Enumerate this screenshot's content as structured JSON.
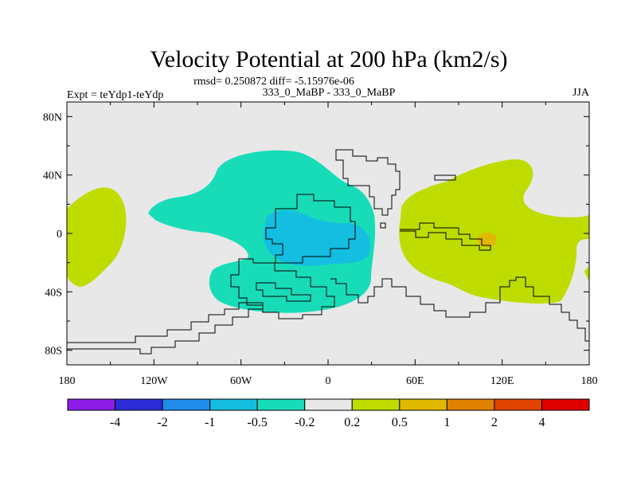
{
  "chart_data": {
    "type": "contour-map",
    "title": "Velocity Potential at 200 hPa (km2/s)",
    "stats_line": "rmsd= 0.250872 diff= -5.15976e-06",
    "left_label": "Expt = teYdp1-teYdp",
    "center_label": "333_0_MaBP - 333_0_MaBP",
    "right_label": "JJA",
    "x_ticks": [
      "180",
      "120W",
      "60W",
      "0",
      "60E",
      "120E",
      "180"
    ],
    "x_tick_values": [
      -180,
      -120,
      -60,
      0,
      60,
      120,
      180
    ],
    "y_ticks": [
      "80N",
      "40N",
      "0",
      "40S",
      "80S"
    ],
    "y_tick_values": [
      80,
      40,
      0,
      -40,
      -80
    ],
    "xlim": [
      -180,
      180
    ],
    "ylim": [
      -90,
      90
    ],
    "colorbar": {
      "labels": [
        "-4",
        "-2",
        "-1",
        "-0.5",
        "-0.2",
        "0.2",
        "0.5",
        "1",
        "2",
        "4"
      ],
      "colors": [
        "#8c1ee8",
        "#2c2cd8",
        "#1e8ce8",
        "#14bee0",
        "#18dcb8",
        "#e8e8e8",
        "#bedc00",
        "#e0b800",
        "#e08200",
        "#e04400",
        "#e00000"
      ]
    },
    "field_colors": {
      "background": "#e8e8e8",
      "negative_light": "#18dcb8",
      "negative_mid": "#14bee0",
      "positive_light": "#bedc00",
      "positive_mid": "#e0b800"
    }
  }
}
